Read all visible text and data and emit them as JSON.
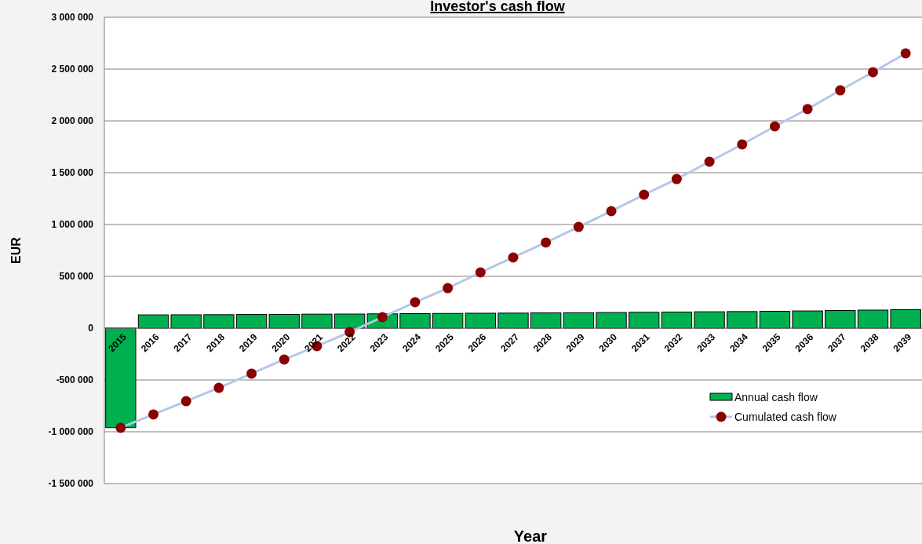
{
  "chart_data": {
    "type": "bar",
    "title": "Investor's cash flow",
    "xlabel": "Year",
    "ylabel": "EUR",
    "categories": [
      "2015",
      "2016",
      "2017",
      "2018",
      "2019",
      "2020",
      "2021",
      "2022",
      "2023",
      "2024",
      "2025",
      "2026",
      "2027",
      "2028",
      "2029",
      "2030",
      "2031",
      "2032",
      "2033",
      "2034",
      "2035",
      "2036",
      "2037",
      "2038",
      "2039"
    ],
    "series": [
      {
        "name": "Annual cash flow",
        "color": "#00b050",
        "values": [
          -960000,
          128000,
          129000,
          130000,
          132000,
          133000,
          135000,
          136000,
          138000,
          140000,
          142000,
          144000,
          145000,
          147000,
          149000,
          151000,
          153000,
          155000,
          158000,
          160000,
          163000,
          166000,
          170000,
          174000,
          178000
        ]
      },
      {
        "name": "Cumulated cash flow",
        "type": "line",
        "color": "#b4c7e7",
        "colors": [
          "#8b0000",
          "#8b0000",
          "#8b0000",
          "#8b0000",
          "#8b0000",
          "#8b0000",
          "#8b0000",
          "#8b0000",
          "#8b0000",
          "#8b0000",
          "#8b0000",
          "#8b0000",
          "#8b0000",
          "#8b0000",
          "#8b0000",
          "#8b0000",
          "#8b0000",
          "#8b0000",
          "#8b0000",
          "#8b0000",
          "#8b0000",
          "#8b0000",
          "#8b0000",
          "#8b0000",
          "#8b0000"
        ],
        "values": [
          -962000,
          -833000,
          -705000,
          -576000,
          -439000,
          -303000,
          -174000,
          -38000,
          106000,
          250000,
          386000,
          538000,
          682000,
          826000,
          977000,
          1129000,
          1288000,
          1439000,
          1606000,
          1773000,
          1947000,
          2114000,
          2295000,
          2470000,
          2652000
        ]
      }
    ],
    "ylim": [
      -1500000,
      3000000
    ],
    "yticks": [
      {
        "value": -1500000,
        "label": "-1 500 000"
      },
      {
        "value": -1000000,
        "label": "-1 000 000"
      },
      {
        "value": -500000,
        "label": "-500 000"
      },
      {
        "value": 0,
        "label": "0"
      },
      {
        "value": 500000,
        "label": "500 000"
      },
      {
        "value": 1000000,
        "label": "1 000 000"
      },
      {
        "value": 1500000,
        "label": "1 500 000"
      },
      {
        "value": 2000000,
        "label": "2 000 000"
      },
      {
        "value": 2500000,
        "label": "2 500 000"
      },
      {
        "value": 3000000,
        "label": "3 000 000"
      }
    ],
    "grid": "y",
    "legend": "bottom right",
    "marker": "circle",
    "line_style": "solid"
  }
}
